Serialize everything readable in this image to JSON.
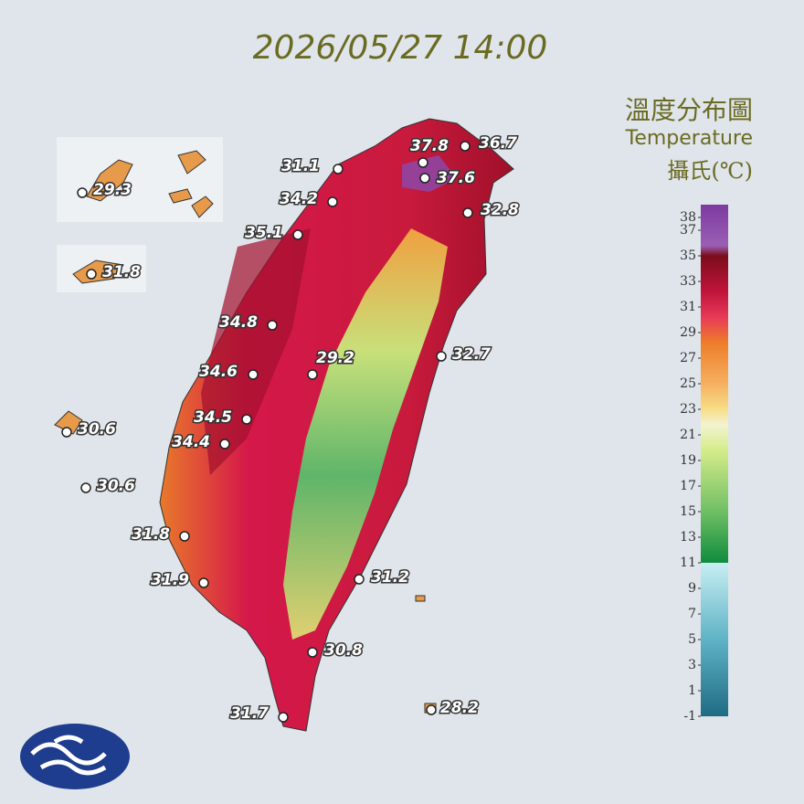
{
  "header": {
    "title": "2026/05/27 14:00"
  },
  "legend": {
    "title": "溫度分布圖",
    "subtitle": "Temperature",
    "unit": "攝氏(℃)",
    "ticks": [
      38,
      37,
      35,
      33,
      31,
      29,
      27,
      25,
      23,
      21,
      19,
      17,
      15,
      13,
      11,
      9,
      7,
      5,
      3,
      1,
      -1
    ]
  },
  "stations": [
    37.8,
    36.7,
    37.6,
    31.1,
    34.2,
    32.8,
    35.1,
    34.8,
    29.2,
    32.7,
    34.6,
    34.5,
    34.4,
    31.8,
    29.3,
    30.6,
    30.6,
    31.8,
    31.9,
    31.2,
    30.8,
    31.7,
    28.2
  ]
}
